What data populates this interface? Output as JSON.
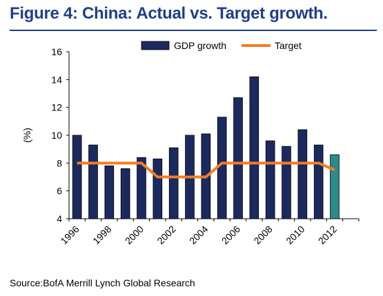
{
  "header": {
    "title": "Figure 4: China:  Actual vs. Target growth."
  },
  "footer": {
    "source": "Source:BofA Merrill Lynch Global Research"
  },
  "chart_data": {
    "type": "bar",
    "title": "",
    "xlabel": "",
    "ylabel": "(%)",
    "ylim": [
      4,
      16
    ],
    "yticks": [
      4,
      6,
      8,
      10,
      12,
      14,
      16
    ],
    "grid": false,
    "legend_position": "top",
    "categories": [
      "1996",
      "1997",
      "1998",
      "1999",
      "2000",
      "2001",
      "2002",
      "2003",
      "2004",
      "2005",
      "2006",
      "2007",
      "2008",
      "2009",
      "2010",
      "2011",
      "2012",
      "2013"
    ],
    "xtick_labels": [
      "1996",
      "",
      "1998",
      "",
      "2000",
      "",
      "2002",
      "",
      "2004",
      "",
      "2006",
      "",
      "2008",
      "",
      "2010",
      "",
      "2012",
      ""
    ],
    "series": [
      {
        "name": "GDP growth",
        "kind": "bar",
        "color": "#1b2a5e",
        "highlight_last_color": "#2b8a8a",
        "values": [
          10.0,
          9.3,
          7.8,
          7.6,
          8.4,
          8.3,
          9.1,
          10.0,
          10.1,
          11.3,
          12.7,
          14.2,
          9.6,
          9.2,
          10.4,
          9.3,
          8.6,
          null
        ]
      },
      {
        "name": "Target",
        "kind": "line",
        "color": "#f07e24",
        "values": [
          8,
          8,
          8,
          8,
          8,
          7,
          7,
          7,
          7,
          8,
          8,
          8,
          8,
          8,
          8,
          8,
          7.5,
          null
        ]
      }
    ],
    "last_bar_highlighted": true
  }
}
